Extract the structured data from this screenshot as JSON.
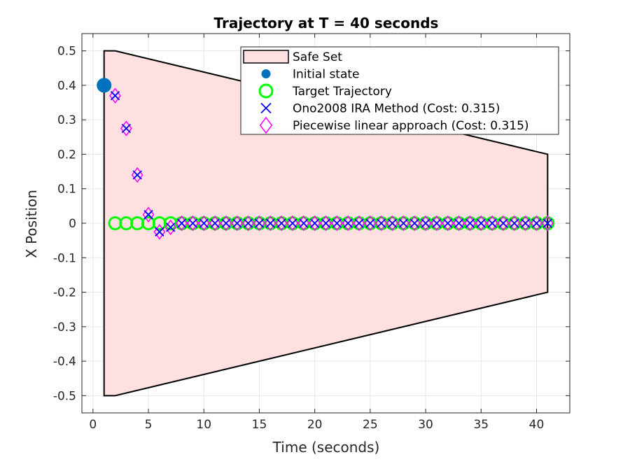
{
  "chart_data": {
    "type": "scatter",
    "title": "Trajectory at T = 40 seconds",
    "xlabel": "Time (seconds)",
    "ylabel": "X Position",
    "xlim": [
      -1,
      43
    ],
    "ylim": [
      -0.55,
      0.55
    ],
    "xticks": [
      0,
      5,
      10,
      15,
      20,
      25,
      30,
      35,
      40
    ],
    "yticks": [
      0.5,
      0.4,
      0.3,
      0.2,
      0.1,
      0,
      -0.1,
      -0.2,
      -0.3,
      -0.4,
      -0.5
    ],
    "xtick_labels": [
      "0",
      "5",
      "10",
      "15",
      "20",
      "25",
      "30",
      "35",
      "40"
    ],
    "ytick_labels": [
      "0.5",
      "0.4",
      "0.3",
      "0.2",
      "0.1",
      "0",
      "-0.1",
      "-0.2",
      "-0.3",
      "-0.4",
      "-0.5"
    ],
    "grid": true,
    "legend_position": "top-right",
    "safe_set": {
      "name": "Safe Set",
      "color": "#ffe0e0",
      "edge_color": "#000000",
      "vertices": [
        [
          1,
          0.5
        ],
        [
          2,
          0.5
        ],
        [
          41,
          0.2
        ],
        [
          41,
          -0.2
        ],
        [
          2,
          -0.5
        ],
        [
          1,
          -0.5
        ]
      ]
    },
    "series": [
      {
        "name": "Initial state",
        "marker": "filled-circle",
        "color": "#0072bd",
        "x": [
          1
        ],
        "y": [
          0.4
        ]
      },
      {
        "name": "Target Trajectory",
        "marker": "circle",
        "color": "#00ff00",
        "x": [
          2,
          3,
          4,
          5,
          6,
          7,
          8,
          9,
          10,
          11,
          12,
          13,
          14,
          15,
          16,
          17,
          18,
          19,
          20,
          21,
          22,
          23,
          24,
          25,
          26,
          27,
          28,
          29,
          30,
          31,
          32,
          33,
          34,
          35,
          36,
          37,
          38,
          39,
          40,
          41
        ],
        "y": [
          0,
          0,
          0,
          0,
          0,
          0,
          0,
          0,
          0,
          0,
          0,
          0,
          0,
          0,
          0,
          0,
          0,
          0,
          0,
          0,
          0,
          0,
          0,
          0,
          0,
          0,
          0,
          0,
          0,
          0,
          0,
          0,
          0,
          0,
          0,
          0,
          0,
          0,
          0,
          0
        ]
      },
      {
        "name": "Ono2008 IRA Method (Cost: 0.315)",
        "marker": "x",
        "color": "#0000ff",
        "x": [
          2,
          3,
          4,
          5,
          6,
          7,
          8,
          9,
          10,
          11,
          12,
          13,
          14,
          15,
          16,
          17,
          18,
          19,
          20,
          21,
          22,
          23,
          24,
          25,
          26,
          27,
          28,
          29,
          30,
          31,
          32,
          33,
          34,
          35,
          36,
          37,
          38,
          39,
          40,
          41
        ],
        "y": [
          0.37,
          0.275,
          0.14,
          0.025,
          -0.025,
          -0.012,
          0,
          0,
          0,
          0,
          0,
          0,
          0,
          0,
          0,
          0,
          0,
          0,
          0,
          0,
          0,
          0,
          0,
          0,
          0,
          0,
          0,
          0,
          0,
          0,
          0,
          0,
          0,
          0,
          0,
          0,
          0,
          0,
          0,
          0
        ]
      },
      {
        "name": "Piecewise linear approach (Cost: 0.315)",
        "marker": "diamond",
        "color": "#ff00ff",
        "x": [
          2,
          3,
          4,
          5,
          6,
          7,
          8,
          9,
          10,
          11,
          12,
          13,
          14,
          15,
          16,
          17,
          18,
          19,
          20,
          21,
          22,
          23,
          24,
          25,
          26,
          27,
          28,
          29,
          30,
          31,
          32,
          33,
          34,
          35,
          36,
          37,
          38,
          39,
          40,
          41
        ],
        "y": [
          0.37,
          0.275,
          0.14,
          0.025,
          -0.025,
          -0.012,
          0,
          0,
          0,
          0,
          0,
          0,
          0,
          0,
          0,
          0,
          0,
          0,
          0,
          0,
          0,
          0,
          0,
          0,
          0,
          0,
          0,
          0,
          0,
          0,
          0,
          0,
          0,
          0,
          0,
          0,
          0,
          0,
          0,
          0
        ]
      }
    ]
  }
}
